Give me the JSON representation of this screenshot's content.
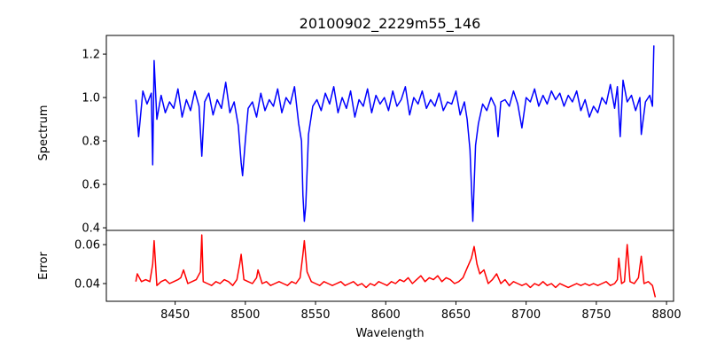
{
  "chart_data": [
    {
      "type": "line",
      "title": "20100902_2229m55_146",
      "xlabel": "",
      "ylabel": "Spectrum",
      "xlim": [
        8401,
        8805
      ],
      "ylim": [
        0.388,
        1.286
      ],
      "yticks": [
        0.4,
        0.6,
        0.8,
        1.0,
        1.2
      ],
      "ytick_labels": [
        "0.4",
        "0.6",
        "0.8",
        "1.0",
        "1.2"
      ],
      "color": "#0000ff",
      "x": [
        8422,
        8424,
        8427,
        8430,
        8433,
        8434,
        8435,
        8437,
        8440,
        8443,
        8446,
        8449,
        8452,
        8455,
        8458,
        8461,
        8464,
        8467,
        8469,
        8471,
        8474,
        8477,
        8480,
        8483,
        8486,
        8489,
        8492,
        8495,
        8497,
        8498,
        8500,
        8502,
        8505,
        8508,
        8511,
        8514,
        8517,
        8520,
        8523,
        8526,
        8529,
        8532,
        8535,
        8538,
        8540,
        8541,
        8542,
        8543,
        8545,
        8548,
        8551,
        8554,
        8557,
        8560,
        8563,
        8566,
        8569,
        8572,
        8575,
        8578,
        8581,
        8584,
        8587,
        8590,
        8593,
        8596,
        8599,
        8602,
        8605,
        8608,
        8611,
        8614,
        8617,
        8620,
        8623,
        8626,
        8629,
        8632,
        8635,
        8638,
        8641,
        8644,
        8647,
        8650,
        8653,
        8656,
        8658,
        8660,
        8662,
        8664,
        8666,
        8669,
        8672,
        8675,
        8678,
        8680,
        8682,
        8685,
        8688,
        8691,
        8694,
        8697,
        8700,
        8703,
        8706,
        8709,
        8712,
        8715,
        8718,
        8721,
        8724,
        8727,
        8730,
        8733,
        8736,
        8739,
        8742,
        8745,
        8748,
        8751,
        8754,
        8757,
        8760,
        8763,
        8765,
        8767,
        8769,
        8772,
        8775,
        8778,
        8781,
        8782,
        8785,
        8788,
        8790,
        8791
      ],
      "values": [
        0.99,
        0.82,
        1.03,
        0.97,
        1.02,
        0.69,
        1.17,
        0.9,
        1.01,
        0.93,
        0.98,
        0.95,
        1.04,
        0.91,
        0.99,
        0.94,
        1.03,
        0.96,
        0.73,
        0.98,
        1.02,
        0.92,
        0.99,
        0.95,
        1.07,
        0.93,
        0.98,
        0.87,
        0.7,
        0.64,
        0.8,
        0.95,
        0.98,
        0.91,
        1.02,
        0.94,
        0.99,
        0.96,
        1.04,
        0.93,
        1.0,
        0.97,
        1.05,
        0.88,
        0.8,
        0.55,
        0.43,
        0.5,
        0.83,
        0.96,
        0.99,
        0.94,
        1.02,
        0.97,
        1.05,
        0.93,
        1.0,
        0.95,
        1.03,
        0.91,
        0.99,
        0.96,
        1.04,
        0.93,
        1.01,
        0.97,
        1.0,
        0.94,
        1.03,
        0.96,
        0.99,
        1.05,
        0.92,
        1.0,
        0.97,
        1.03,
        0.95,
        0.99,
        0.96,
        1.02,
        0.94,
        0.98,
        0.97,
        1.03,
        0.92,
        0.98,
        0.9,
        0.76,
        0.43,
        0.78,
        0.88,
        0.97,
        0.94,
        1.0,
        0.96,
        0.82,
        0.98,
        0.99,
        0.96,
        1.03,
        0.97,
        0.86,
        1.0,
        0.98,
        1.04,
        0.96,
        1.01,
        0.97,
        1.03,
        0.99,
        1.02,
        0.96,
        1.01,
        0.98,
        1.03,
        0.94,
        0.99,
        0.91,
        0.96,
        0.93,
        1.0,
        0.97,
        1.06,
        0.95,
        1.05,
        0.82,
        1.08,
        0.98,
        1.01,
        0.94,
        1.0,
        0.83,
        0.98,
        1.01,
        0.96,
        1.24
      ]
    },
    {
      "type": "line",
      "title": "",
      "xlabel": "Wavelength",
      "ylabel": "Error",
      "xlim": [
        8401,
        8805
      ],
      "ylim": [
        0.0309,
        0.0673
      ],
      "xticks": [
        8450,
        8500,
        8550,
        8600,
        8650,
        8700,
        8750,
        8800
      ],
      "xtick_labels": [
        "8450",
        "8500",
        "8550",
        "8600",
        "8650",
        "8700",
        "8750",
        "8800"
      ],
      "yticks": [
        0.04,
        0.06
      ],
      "ytick_labels": [
        "0.04",
        "0.06"
      ],
      "color": "#ff0000",
      "x": [
        8422,
        8423,
        8426,
        8429,
        8432,
        8434,
        8435,
        8437,
        8440,
        8443,
        8446,
        8449,
        8452,
        8454,
        8456,
        8459,
        8462,
        8465,
        8468,
        8469,
        8470,
        8473,
        8476,
        8479,
        8482,
        8485,
        8488,
        8491,
        8494,
        8496,
        8497,
        8499,
        8502,
        8505,
        8508,
        8509,
        8512,
        8515,
        8518,
        8521,
        8524,
        8527,
        8530,
        8533,
        8536,
        8539,
        8541,
        8542,
        8544,
        8547,
        8550,
        8553,
        8556,
        8559,
        8562,
        8565,
        8568,
        8571,
        8574,
        8577,
        8580,
        8583,
        8586,
        8589,
        8592,
        8595,
        8598,
        8601,
        8604,
        8607,
        8610,
        8613,
        8616,
        8619,
        8622,
        8625,
        8628,
        8631,
        8634,
        8637,
        8640,
        8643,
        8646,
        8649,
        8652,
        8655,
        8658,
        8661,
        8663,
        8665,
        8667,
        8670,
        8673,
        8676,
        8679,
        8682,
        8685,
        8688,
        8691,
        8694,
        8697,
        8700,
        8703,
        8706,
        8709,
        8712,
        8715,
        8718,
        8721,
        8724,
        8727,
        8730,
        8733,
        8736,
        8739,
        8742,
        8745,
        8748,
        8751,
        8754,
        8757,
        8760,
        8763,
        8765,
        8766,
        8768,
        8770,
        8772,
        8774,
        8777,
        8780,
        8782,
        8784,
        8787,
        8790,
        8792
      ],
      "values": [
        0.041,
        0.045,
        0.041,
        0.042,
        0.041,
        0.05,
        0.062,
        0.039,
        0.041,
        0.042,
        0.04,
        0.041,
        0.042,
        0.043,
        0.047,
        0.04,
        0.041,
        0.042,
        0.046,
        0.065,
        0.041,
        0.04,
        0.039,
        0.041,
        0.04,
        0.042,
        0.041,
        0.039,
        0.042,
        0.05,
        0.055,
        0.042,
        0.041,
        0.04,
        0.043,
        0.047,
        0.04,
        0.041,
        0.039,
        0.04,
        0.041,
        0.04,
        0.039,
        0.041,
        0.04,
        0.043,
        0.055,
        0.062,
        0.046,
        0.041,
        0.04,
        0.039,
        0.041,
        0.04,
        0.039,
        0.04,
        0.041,
        0.039,
        0.04,
        0.041,
        0.039,
        0.04,
        0.038,
        0.04,
        0.039,
        0.041,
        0.04,
        0.039,
        0.041,
        0.04,
        0.042,
        0.041,
        0.043,
        0.04,
        0.042,
        0.044,
        0.041,
        0.043,
        0.042,
        0.044,
        0.041,
        0.043,
        0.042,
        0.04,
        0.041,
        0.043,
        0.048,
        0.053,
        0.059,
        0.05,
        0.045,
        0.047,
        0.04,
        0.042,
        0.045,
        0.04,
        0.042,
        0.039,
        0.041,
        0.04,
        0.039,
        0.04,
        0.038,
        0.04,
        0.039,
        0.041,
        0.039,
        0.04,
        0.038,
        0.04,
        0.039,
        0.038,
        0.039,
        0.04,
        0.039,
        0.04,
        0.039,
        0.04,
        0.039,
        0.04,
        0.041,
        0.039,
        0.04,
        0.042,
        0.053,
        0.04,
        0.041,
        0.06,
        0.041,
        0.04,
        0.043,
        0.054,
        0.04,
        0.041,
        0.039,
        0.033
      ]
    }
  ]
}
